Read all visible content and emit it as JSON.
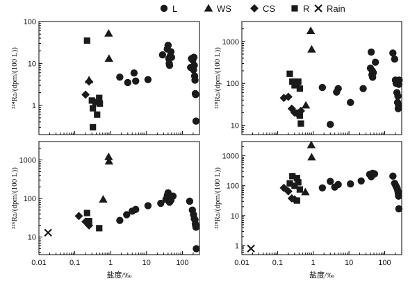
{
  "legend": {
    "items": [
      {
        "label": "L",
        "marker": "circle"
      },
      {
        "label": "WS",
        "marker": "triangle"
      },
      {
        "label": "CS",
        "marker": "diamond"
      },
      {
        "label": "R",
        "marker": "square"
      },
      {
        "label": "Rain",
        "marker": "cross"
      }
    ]
  },
  "style": {
    "marker_color": "#1a1a1a",
    "frame_color": "#000000"
  },
  "chart_data": [
    {
      "type": "scatter",
      "panel": "top-left",
      "title": "",
      "xlabel": "",
      "ylabel": "²²⁴Ra/(dpm/(100 L))",
      "xscale": "log",
      "yscale": "log",
      "xlim": [
        0.01,
        300
      ],
      "ylim": [
        0.2,
        100
      ],
      "xticks": [
        "0.01",
        "0.1",
        "1",
        "10",
        "100"
      ],
      "yticks": [
        {
          "v": 1,
          "label": "1"
        },
        {
          "v": 10,
          "label": "10"
        },
        {
          "v": 100,
          "label": "100"
        }
      ],
      "series": [
        {
          "name": "L",
          "marker": "circle",
          "points": [
            [
              1.8,
              4.7
            ],
            [
              3,
              3.5
            ],
            [
              4.5,
              5.9
            ],
            [
              5,
              3.8
            ],
            [
              11,
              4.1
            ],
            [
              28,
              16
            ],
            [
              38,
              22
            ],
            [
              40,
              27
            ],
            [
              42,
              13
            ],
            [
              43,
              10
            ],
            [
              44,
              9
            ],
            [
              46,
              15
            ],
            [
              48,
              19
            ],
            [
              50,
              14
            ],
            [
              170,
              8
            ],
            [
              180,
              13
            ],
            [
              195,
              12
            ],
            [
              205,
              7
            ],
            [
              210,
              14
            ],
            [
              215,
              9
            ],
            [
              220,
              5
            ],
            [
              225,
              4
            ],
            [
              230,
              1.9
            ],
            [
              235,
              1.8
            ],
            [
              240,
              0.42
            ]
          ]
        },
        {
          "name": "WS",
          "marker": "triangle",
          "points": [
            [
              0.25,
              4
            ],
            [
              0.88,
              52
            ],
            [
              0.9,
              13
            ]
          ]
        },
        {
          "name": "CS",
          "marker": "diamond",
          "points": [
            [
              0.2,
              1.8
            ],
            [
              0.25,
              3.7
            ]
          ]
        },
        {
          "name": "R",
          "marker": "square",
          "points": [
            [
              0.22,
              35
            ],
            [
              0.3,
              1.3
            ],
            [
              0.32,
              0.85
            ],
            [
              0.32,
              0.3
            ],
            [
              0.38,
              1.2
            ],
            [
              0.42,
              0.6
            ],
            [
              0.48,
              1.5
            ],
            [
              0.5,
              1.1
            ]
          ]
        },
        {
          "name": "Rain",
          "marker": "cross",
          "points": []
        }
      ]
    },
    {
      "type": "scatter",
      "panel": "top-right",
      "title": "",
      "xlabel": "",
      "ylabel": "²²⁸Ra/(dpm/(100 L))",
      "xscale": "log",
      "yscale": "log",
      "xlim": [
        0.01,
        300
      ],
      "ylim": [
        6,
        3000
      ],
      "xticks": [
        "0.01",
        "0.1",
        "1",
        "10",
        "100"
      ],
      "yticks": [
        {
          "v": 10,
          "label": "10"
        },
        {
          "v": 100,
          "label": "100"
        },
        {
          "v": 1000,
          "label": "1000"
        }
      ],
      "series": [
        {
          "name": "L",
          "marker": "circle",
          "points": [
            [
              1.8,
              80
            ],
            [
              3,
              10.5
            ],
            [
              4.5,
              62
            ],
            [
              5,
              75
            ],
            [
              11,
              35
            ],
            [
              25,
              75
            ],
            [
              40,
              230
            ],
            [
              42,
              560
            ],
            [
              44,
              160
            ],
            [
              45,
              200
            ],
            [
              46,
              140
            ],
            [
              48,
              180
            ],
            [
              55,
              320
            ],
            [
              170,
              530
            ],
            [
              190,
              380
            ],
            [
              200,
              120
            ],
            [
              210,
              100
            ],
            [
              220,
              60
            ],
            [
              230,
              35
            ],
            [
              235,
              50
            ],
            [
              240,
              25
            ],
            [
              245,
              30
            ],
            [
              250,
              95
            ],
            [
              255,
              120
            ]
          ]
        },
        {
          "name": "WS",
          "marker": "triangle",
          "points": [
            [
              0.62,
              30
            ],
            [
              0.85,
              1800
            ],
            [
              0.9,
              650
            ]
          ]
        },
        {
          "name": "CS",
          "marker": "diamond",
          "points": [
            [
              0.15,
              45
            ],
            [
              0.2,
              48
            ],
            [
              0.25,
              25
            ],
            [
              0.3,
              20
            ],
            [
              0.38,
              18
            ],
            [
              0.45,
              22
            ]
          ]
        },
        {
          "name": "R",
          "marker": "square",
          "points": [
            [
              0.22,
              170
            ],
            [
              0.26,
              110
            ],
            [
              0.3,
              90
            ],
            [
              0.35,
              100
            ],
            [
              0.38,
              110
            ],
            [
              0.42,
              75
            ],
            [
              0.35,
              20
            ],
            [
              0.42,
              17
            ],
            [
              0.45,
              11
            ]
          ]
        },
        {
          "name": "Rain",
          "marker": "cross",
          "points": []
        }
      ]
    },
    {
      "type": "scatter",
      "panel": "bottom-left",
      "title": "",
      "xlabel": "盐度/‰",
      "ylabel": "²²⁶Ra/(dpm/(100 L))",
      "xscale": "log",
      "yscale": "log",
      "xlim": [
        0.01,
        300
      ],
      "ylim": [
        3.5,
        3000
      ],
      "xticks": [
        "0.01",
        "0.1",
        "1",
        "10",
        "100"
      ],
      "yticks": [
        {
          "v": 10,
          "label": "10"
        },
        {
          "v": 100,
          "label": "100"
        },
        {
          "v": 1000,
          "label": "1000"
        }
      ],
      "series": [
        {
          "name": "L",
          "marker": "circle",
          "points": [
            [
              1.8,
              27
            ],
            [
              2.8,
              38
            ],
            [
              4,
              47
            ],
            [
              5,
              52
            ],
            [
              11,
              65
            ],
            [
              25,
              75
            ],
            [
              35,
              95
            ],
            [
              38,
              120
            ],
            [
              40,
              140
            ],
            [
              42,
              105
            ],
            [
              44,
              80
            ],
            [
              48,
              90
            ],
            [
              55,
              115
            ],
            [
              160,
              85
            ],
            [
              190,
              50
            ],
            [
              205,
              38
            ],
            [
              215,
              30
            ],
            [
              225,
              28
            ],
            [
              230,
              22
            ],
            [
              235,
              20
            ],
            [
              240,
              18
            ],
            [
              245,
              5
            ]
          ]
        },
        {
          "name": "WS",
          "marker": "triangle",
          "points": [
            [
              0.62,
              95
            ],
            [
              0.88,
              1200
            ],
            [
              0.9,
              920
            ]
          ]
        },
        {
          "name": "CS",
          "marker": "diamond",
          "points": [
            [
              0.13,
              35
            ],
            [
              0.2,
              25
            ],
            [
              0.25,
              20
            ]
          ]
        },
        {
          "name": "R",
          "marker": "square",
          "points": [
            [
              0.22,
              42
            ],
            [
              0.25,
              26
            ],
            [
              0.48,
              17
            ]
          ]
        },
        {
          "name": "Rain",
          "marker": "cross",
          "points": [
            [
              0.018,
              13
            ]
          ]
        }
      ]
    },
    {
      "type": "scatter",
      "panel": "bottom-right",
      "title": "",
      "xlabel": "盐度/‰",
      "ylabel": "²²⁸Ra/(dpm/(100 L))",
      "xscale": "log",
      "yscale": "log",
      "xlim": [
        0.01,
        300
      ],
      "ylim": [
        0.5,
        3000
      ],
      "xticks": [
        "0.01",
        "0.1",
        "1",
        "10",
        "100"
      ],
      "yticks": [
        {
          "v": 1,
          "label": "1"
        },
        {
          "v": 10,
          "label": "10"
        },
        {
          "v": 100,
          "label": "100"
        },
        {
          "v": 1000,
          "label": "1000"
        }
      ],
      "series": [
        {
          "name": "L",
          "marker": "circle",
          "points": [
            [
              1.8,
              85
            ],
            [
              3,
              140
            ],
            [
              4,
              90
            ],
            [
              5,
              110
            ],
            [
              11,
              115
            ],
            [
              22,
              145
            ],
            [
              38,
              240
            ],
            [
              42,
              200
            ],
            [
              46,
              260
            ],
            [
              52,
              250
            ],
            [
              170,
              210
            ],
            [
              190,
              120
            ],
            [
              205,
              100
            ],
            [
              215,
              90
            ],
            [
              225,
              80
            ],
            [
              235,
              65
            ],
            [
              240,
              55
            ],
            [
              245,
              45
            ],
            [
              250,
              17
            ]
          ]
        },
        {
          "name": "WS",
          "marker": "triangle",
          "points": [
            [
              0.6,
              62
            ],
            [
              0.88,
              2300
            ],
            [
              0.9,
              900
            ]
          ]
        },
        {
          "name": "CS",
          "marker": "diamond",
          "points": [
            [
              0.15,
              85
            ],
            [
              0.2,
              65
            ],
            [
              0.25,
              38
            ],
            [
              0.3,
              35
            ]
          ]
        },
        {
          "name": "R",
          "marker": "square",
          "points": [
            [
              0.22,
              120
            ],
            [
              0.26,
              210
            ],
            [
              0.3,
              100
            ],
            [
              0.35,
              180
            ],
            [
              0.38,
              130
            ],
            [
              0.42,
              75
            ],
            [
              0.35,
              32
            ]
          ]
        },
        {
          "name": "Rain",
          "marker": "cross",
          "points": [
            [
              0.018,
              0.8
            ]
          ]
        }
      ]
    }
  ]
}
